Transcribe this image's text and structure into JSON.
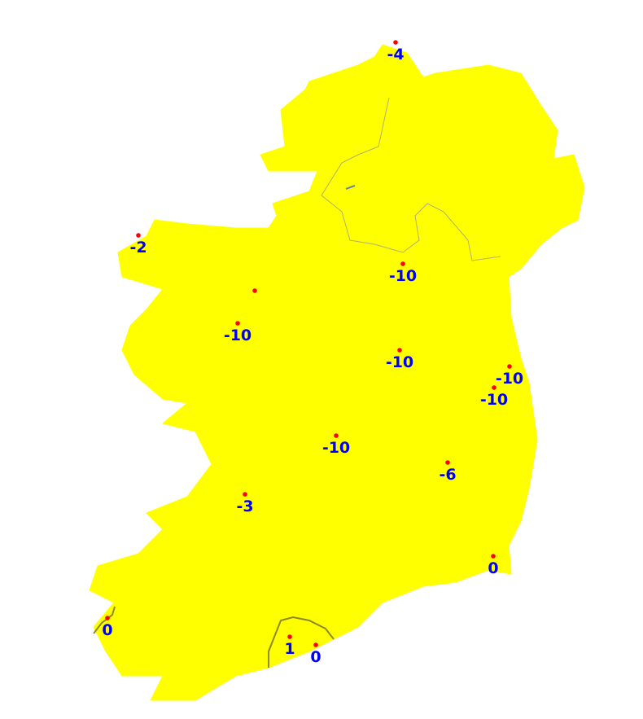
{
  "map": {
    "land_color": "#ffff00",
    "point_color": "#ff0000",
    "label_color": "#0000ff",
    "stations": [
      {
        "label": "-4"
      },
      {
        "label": "-2"
      },
      {
        "label": ""
      },
      {
        "label": "-10"
      },
      {
        "label": "-10"
      },
      {
        "label": "-10"
      },
      {
        "label": "-10"
      },
      {
        "label": "-10"
      },
      {
        "label": "-10"
      },
      {
        "label": "-6"
      },
      {
        "label": "-3"
      },
      {
        "label": "0"
      },
      {
        "label": "0"
      },
      {
        "label": "1"
      },
      {
        "label": "0"
      }
    ]
  }
}
